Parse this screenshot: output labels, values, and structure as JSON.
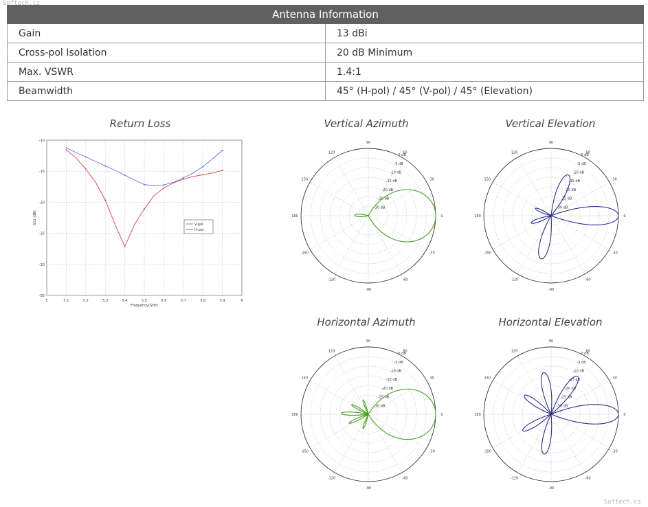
{
  "watermark": {
    "top_left": "Softech.cz",
    "bottom_right": "Softech.cz"
  },
  "table": {
    "title": "Antenna Information",
    "rows": [
      {
        "key": "Gain",
        "value": "13 dBi"
      },
      {
        "key": "Cross-pol Isolation",
        "value": "20 dB Minimum"
      },
      {
        "key": "Max. VSWR",
        "value": "1.4:1"
      },
      {
        "key": "Beamwidth",
        "value": "45° (H-pol) / 45° (V-pol) / 45° (Elevation)"
      }
    ]
  },
  "chart_data": [
    {
      "type": "line",
      "title": "Return Loss",
      "xlabel": "Frequency(GHz)",
      "ylabel": "S11 (dB)",
      "xlim": [
        5.0,
        6.0
      ],
      "ylim": [
        -45,
        -10
      ],
      "xticks": [
        "5",
        "5.1",
        "5.2",
        "5.3",
        "5.4",
        "5.5",
        "5.6",
        "5.7",
        "5.8",
        "5.9",
        "6"
      ],
      "yticks": [
        "-10",
        "-15",
        "-20",
        "-25",
        "-30",
        "-35"
      ],
      "grid": true,
      "legend_position": "right",
      "x": [
        5.1,
        5.15,
        5.2,
        5.25,
        5.3,
        5.35,
        5.4,
        5.45,
        5.5,
        5.55,
        5.6,
        5.65,
        5.7,
        5.75,
        5.8,
        5.85,
        5.9
      ],
      "series": [
        {
          "name": "V-pol",
          "color": "#6a6adc",
          "values": [
            -11.7,
            -12.8,
            -13.8,
            -14.8,
            -15.8,
            -16.8,
            -17.9,
            -19.0,
            -20.0,
            -20.3,
            -20.1,
            -19.5,
            -18.5,
            -17.4,
            -16.0,
            -14.2,
            -12.3
          ]
        },
        {
          "name": "H-pol",
          "color": "#d94040",
          "values": [
            -12.2,
            -14.0,
            -16.5,
            -19.5,
            -23.5,
            -29.0,
            -34.0,
            -29.0,
            -25.5,
            -22.5,
            -20.8,
            -19.6,
            -18.8,
            -18.2,
            -17.8,
            -17.4,
            -16.8
          ]
        }
      ]
    },
    {
      "type": "polar",
      "title": "Vertical Azimuth",
      "color": "#3fa31b",
      "angle_labels": [
        "0",
        "30",
        "60",
        "90",
        "120",
        "150",
        "180",
        "-150",
        "-120",
        "-90",
        "-60",
        "-30"
      ],
      "radial_labels": [
        "0 dB",
        "-5 dB",
        "-10 dB",
        "-15 dB",
        "-20 dB",
        "-25 dB",
        "-30 dB"
      ],
      "lobes": [
        {
          "angle_deg": 0,
          "peak_db": 0,
          "width_deg": 48
        },
        {
          "angle_deg": 178,
          "peak_db": -28,
          "width_deg": 25
        }
      ]
    },
    {
      "type": "polar",
      "title": "Vertical Elevation",
      "color": "#2c2c8c",
      "angle_labels": [
        "0",
        "30",
        "60",
        "90",
        "120",
        "150",
        "180",
        "-150",
        "-120",
        "-90",
        "-60",
        "-30"
      ],
      "radial_labels": [
        "0 dB",
        "-5 dB",
        "-10 dB",
        "-15 dB",
        "-20 dB",
        "-25 dB",
        "-30 dB"
      ],
      "lobes": [
        {
          "angle_deg": 0,
          "peak_db": 0,
          "width_deg": 16
        },
        {
          "angle_deg": 67,
          "peak_db": -12,
          "width_deg": 16
        },
        {
          "angle_deg": -103,
          "peak_db": -12,
          "width_deg": 16
        },
        {
          "angle_deg": 155,
          "peak_db": -26,
          "width_deg": 16
        },
        {
          "angle_deg": -160,
          "peak_db": -24,
          "width_deg": 16
        }
      ]
    },
    {
      "type": "polar",
      "title": "Horizontal Azimuth",
      "color": "#3fa31b",
      "angle_labels": [
        "0",
        "30",
        "60",
        "90",
        "120",
        "150",
        "180",
        "-150",
        "-120",
        "-90",
        "-60",
        "-30"
      ],
      "radial_labels": [
        "0 dB",
        "-5 dB",
        "-10 dB",
        "-15 dB",
        "-20 dB",
        "-25 dB",
        "-30 dB"
      ],
      "lobes": [
        {
          "angle_deg": 0,
          "peak_db": 0,
          "width_deg": 46
        },
        {
          "angle_deg": 178,
          "peak_db": -21,
          "width_deg": 11
        },
        {
          "angle_deg": 150,
          "peak_db": -25,
          "width_deg": 11
        },
        {
          "angle_deg": -155,
          "peak_db": -24,
          "width_deg": 11
        },
        {
          "angle_deg": 110,
          "peak_db": -27,
          "width_deg": 11
        },
        {
          "angle_deg": -110,
          "peak_db": -27,
          "width_deg": 11
        }
      ]
    },
    {
      "type": "polar",
      "title": "Horizontal Elevation",
      "color": "#2c2c8c",
      "angle_labels": [
        "0",
        "30",
        "60",
        "90",
        "120",
        "150",
        "180",
        "-150",
        "-120",
        "-90",
        "-60",
        "-30"
      ],
      "radial_labels": [
        "0 dB",
        "-5 dB",
        "-10 dB",
        "-15 dB",
        "-20 dB",
        "-25 dB",
        "-30 dB"
      ],
      "lobes": [
        {
          "angle_deg": 0,
          "peak_db": 0,
          "width_deg": 17
        },
        {
          "angle_deg": 55,
          "peak_db": -11,
          "width_deg": 14
        },
        {
          "angle_deg": 100,
          "peak_db": -13,
          "width_deg": 15
        },
        {
          "angle_deg": -100,
          "peak_db": -14,
          "width_deg": 15
        },
        {
          "angle_deg": 145,
          "peak_db": -18,
          "width_deg": 14
        },
        {
          "angle_deg": -150,
          "peak_db": -18,
          "width_deg": 14
        }
      ]
    }
  ]
}
